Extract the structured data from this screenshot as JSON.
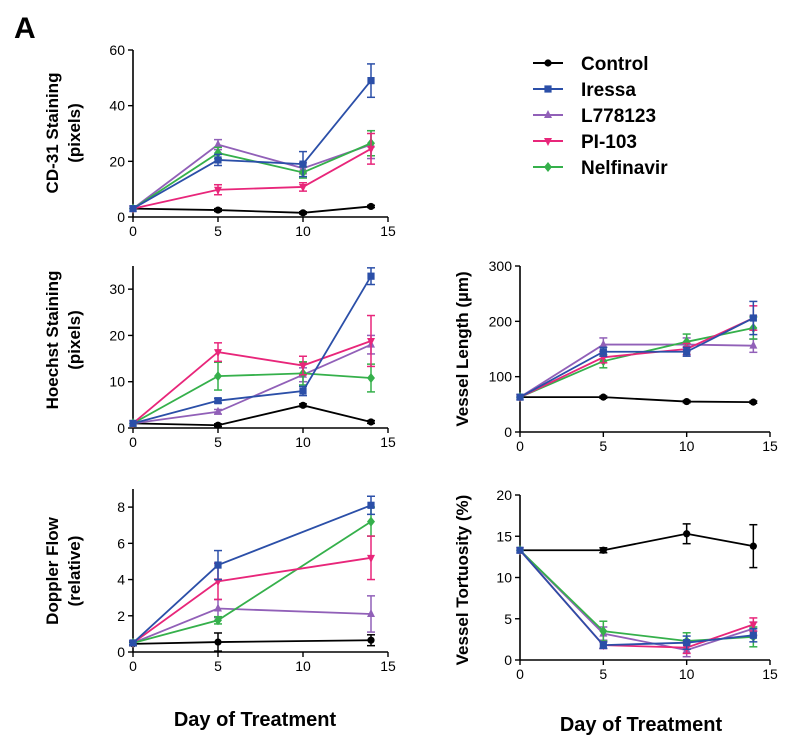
{
  "panel_label": "A",
  "x_axis_title": "Day of Treatment",
  "series_info": [
    {
      "name": "Control",
      "color": "#000000",
      "marker": "circle"
    },
    {
      "name": "Iressa",
      "color": "#2b4fa8",
      "marker": "square"
    },
    {
      "name": "L778123",
      "color": "#9160b8",
      "marker": "triangle-up"
    },
    {
      "name": "PI-103",
      "color": "#e8267a",
      "marker": "triangle-down"
    },
    {
      "name": "Nelfinavir",
      "color": "#35b04b",
      "marker": "diamond"
    }
  ],
  "chart_data": [
    {
      "id": "cd31",
      "type": "line",
      "title": "",
      "xlabel": "",
      "ylabel_lines": [
        "CD-31 Staining",
        "(pixels)"
      ],
      "xlim": [
        0,
        15
      ],
      "ylim": [
        0,
        60
      ],
      "xticks": [
        0,
        5,
        10,
        15
      ],
      "yticks": [
        0,
        20,
        40,
        60
      ],
      "x": [
        0,
        5,
        10,
        14
      ],
      "series": [
        {
          "name": "Control",
          "values": [
            3,
            2.5,
            1.5,
            3.8
          ],
          "err": [
            0,
            0.5,
            0.4,
            0.4
          ]
        },
        {
          "name": "Iressa",
          "values": [
            3,
            20.5,
            19,
            49
          ],
          "err": [
            0,
            2,
            4.5,
            6
          ]
        },
        {
          "name": "L778123",
          "values": [
            3,
            26,
            17.5,
            26
          ],
          "err": [
            0,
            1.8,
            2,
            5
          ]
        },
        {
          "name": "PI-103",
          "values": [
            3,
            9.8,
            10.8,
            24.5
          ],
          "err": [
            0,
            1.8,
            1.5,
            5.5
          ]
        },
        {
          "name": "Nelfinavir",
          "values": [
            3,
            23,
            16,
            26.5
          ],
          "err": [
            0,
            2,
            2,
            4.5
          ]
        }
      ]
    },
    {
      "id": "hoechst",
      "type": "line",
      "title": "",
      "xlabel": "",
      "ylabel_lines": [
        "Hoechst Staining",
        "(pixels)"
      ],
      "xlim": [
        0,
        15
      ],
      "ylim": [
        0,
        35
      ],
      "xticks": [
        0,
        5,
        10,
        15
      ],
      "yticks": [
        0,
        10,
        20,
        30
      ],
      "x": [
        0,
        5,
        10,
        14
      ],
      "series": [
        {
          "name": "Control",
          "values": [
            1,
            0.6,
            4.9,
            1.3
          ],
          "err": [
            0,
            0.3,
            0.3,
            0.3
          ]
        },
        {
          "name": "Iressa",
          "values": [
            1,
            5.9,
            8,
            32.8
          ],
          "err": [
            0,
            0.5,
            1,
            1.8
          ]
        },
        {
          "name": "L778123",
          "values": [
            1,
            3.5,
            11.5,
            18
          ],
          "err": [
            0,
            0.5,
            1.5,
            2
          ]
        },
        {
          "name": "PI-103",
          "values": [
            1,
            16.4,
            13.5,
            18.8
          ],
          "err": [
            0,
            2,
            2,
            5.5
          ]
        },
        {
          "name": "Nelfinavir",
          "values": [
            1,
            11.2,
            11.8,
            10.8
          ],
          "err": [
            0,
            3,
            2.5,
            3
          ]
        }
      ]
    },
    {
      "id": "vessel_length",
      "type": "line",
      "title": "",
      "xlabel": "",
      "ylabel_lines": [
        "Vessel Length (µm)"
      ],
      "xlim": [
        0,
        15
      ],
      "ylim": [
        0,
        300
      ],
      "xticks": [
        0,
        5,
        10,
        15
      ],
      "yticks": [
        0,
        100,
        200,
        300
      ],
      "x": [
        0,
        5,
        10,
        14
      ],
      "series": [
        {
          "name": "Control",
          "values": [
            63,
            63,
            55,
            54
          ],
          "err": [
            0,
            2,
            2,
            2
          ]
        },
        {
          "name": "Iressa",
          "values": [
            63,
            145,
            145,
            206
          ],
          "err": [
            0,
            8,
            8,
            30
          ]
        },
        {
          "name": "L778123",
          "values": [
            63,
            158,
            158,
            156
          ],
          "err": [
            0,
            12,
            12,
            12
          ]
        },
        {
          "name": "PI-103",
          "values": [
            63,
            135,
            150,
            206
          ],
          "err": [
            0,
            10,
            10,
            22
          ]
        },
        {
          "name": "Nelfinavir",
          "values": [
            63,
            128,
            163,
            188
          ],
          "err": [
            0,
            12,
            14,
            20
          ]
        }
      ]
    },
    {
      "id": "doppler",
      "type": "line",
      "title": "",
      "xlabel": "",
      "ylabel_lines": [
        "Doppler Flow",
        "(relative)"
      ],
      "xlim": [
        0,
        15
      ],
      "ylim": [
        0,
        9
      ],
      "xticks": [
        0,
        5,
        10,
        15
      ],
      "yticks": [
        0,
        2,
        4,
        6,
        8
      ],
      "x": [
        0,
        5,
        14
      ],
      "series": [
        {
          "name": "Control",
          "values": [
            0.45,
            0.55,
            0.65
          ],
          "err": [
            0.1,
            0.5,
            0.3
          ]
        },
        {
          "name": "Iressa",
          "values": [
            0.5,
            4.8,
            8.1
          ],
          "err": [
            0.1,
            0.8,
            0.5
          ]
        },
        {
          "name": "L778123",
          "values": [
            0.5,
            2.4,
            2.1
          ],
          "err": [
            0.1,
            0.5,
            1
          ]
        },
        {
          "name": "PI-103",
          "values": [
            0.5,
            3.9,
            5.2
          ],
          "err": [
            0.1,
            1,
            1.2
          ]
        },
        {
          "name": "Nelfinavir",
          "values": [
            0.5,
            1.75,
            7.2
          ],
          "err": [
            0.1,
            0.2,
            0.8
          ]
        }
      ]
    },
    {
      "id": "tortuosity",
      "type": "line",
      "title": "",
      "xlabel": "",
      "ylabel_lines": [
        "Vessel Tortuosity (%)"
      ],
      "xlim": [
        0,
        15
      ],
      "ylim": [
        0,
        20
      ],
      "xticks": [
        0,
        5,
        10,
        15
      ],
      "yticks": [
        0,
        5,
        10,
        15,
        20
      ],
      "x": [
        0,
        5,
        10,
        14
      ],
      "series": [
        {
          "name": "Control",
          "values": [
            13.3,
            13.3,
            15.3,
            13.8
          ],
          "err": [
            0,
            0.3,
            1.2,
            2.6
          ]
        },
        {
          "name": "Iressa",
          "values": [
            13.3,
            1.8,
            2.1,
            3
          ],
          "err": [
            0,
            0.4,
            0.8,
            0.8
          ]
        },
        {
          "name": "L778123",
          "values": [
            13.3,
            3.2,
            1.2,
            3.8
          ],
          "err": [
            0,
            0.8,
            0.8,
            0.8
          ]
        },
        {
          "name": "PI-103",
          "values": [
            13.3,
            1.8,
            1.5,
            4.3
          ],
          "err": [
            0,
            0.4,
            0.7,
            0.8
          ]
        },
        {
          "name": "Nelfinavir",
          "values": [
            13.3,
            3.5,
            2.3,
            2.8
          ],
          "err": [
            0,
            1.2,
            1,
            1.2
          ]
        }
      ]
    }
  ]
}
